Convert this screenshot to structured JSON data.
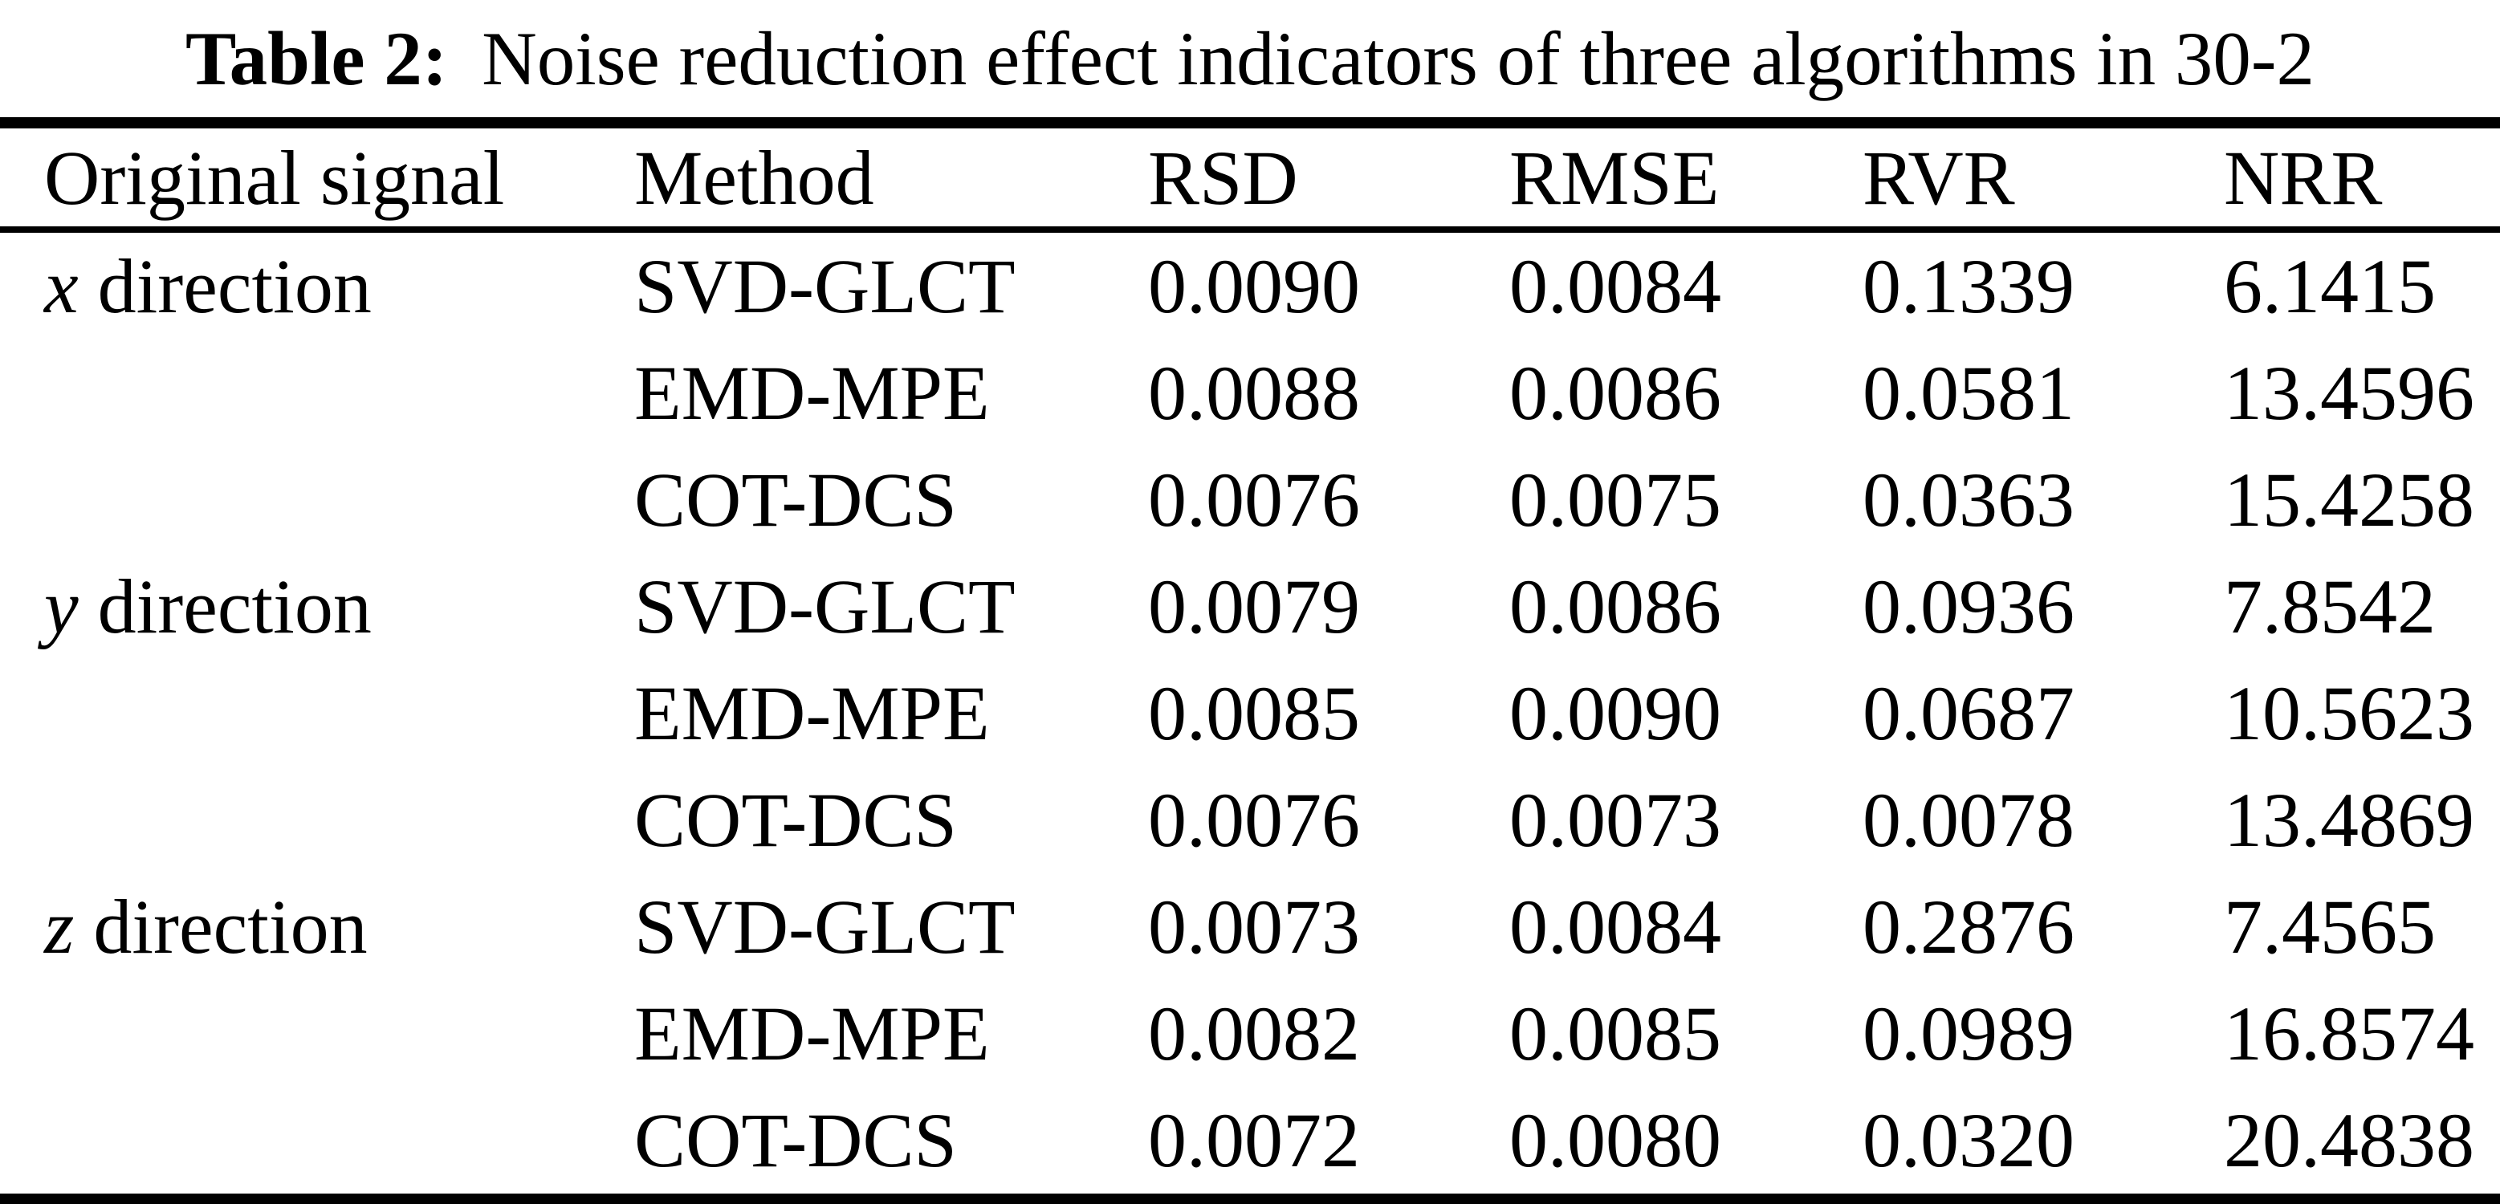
{
  "title": {
    "label": "Table 2:",
    "text": "Noise reduction effect indicators of three algorithms in 30-2"
  },
  "table": {
    "columns": [
      "Original signal",
      "Method",
      "RSD",
      "RMSE",
      "RVR",
      "NRR"
    ],
    "rows": [
      {
        "signal_letter": "x",
        "signal_rest": " direction",
        "method": "SVD-GLCT",
        "rsd": "0.0090",
        "rmse": "0.0084",
        "rvr": "0.1339",
        "nrr": "6.1415"
      },
      {
        "signal_letter": "",
        "signal_rest": "",
        "method": "EMD-MPE",
        "rsd": "0.0088",
        "rmse": "0.0086",
        "rvr": "0.0581",
        "nrr": "13.4596"
      },
      {
        "signal_letter": "",
        "signal_rest": "",
        "method": "COT-DCS",
        "rsd": "0.0076",
        "rmse": "0.0075",
        "rvr": "0.0363",
        "nrr": "15.4258"
      },
      {
        "signal_letter": "y",
        "signal_rest": " direction",
        "method": "SVD-GLCT",
        "rsd": "0.0079",
        "rmse": "0.0086",
        "rvr": "0.0936",
        "nrr": "7.8542"
      },
      {
        "signal_letter": "",
        "signal_rest": "",
        "method": "EMD-MPE",
        "rsd": "0.0085",
        "rmse": "0.0090",
        "rvr": "0.0687",
        "nrr": "10.5623"
      },
      {
        "signal_letter": "",
        "signal_rest": "",
        "method": "COT-DCS",
        "rsd": "0.0076",
        "rmse": "0.0073",
        "rvr": "0.0078",
        "nrr": "13.4869"
      },
      {
        "signal_letter": "z",
        "signal_rest": " direction",
        "method": "SVD-GLCT",
        "rsd": "0.0073",
        "rmse": "0.0084",
        "rvr": "0.2876",
        "nrr": "7.4565"
      },
      {
        "signal_letter": "",
        "signal_rest": "",
        "method": "EMD-MPE",
        "rsd": "0.0082",
        "rmse": "0.0085",
        "rvr": "0.0989",
        "nrr": "16.8574"
      },
      {
        "signal_letter": "",
        "signal_rest": "",
        "method": "COT-DCS",
        "rsd": "0.0072",
        "rmse": "0.0080",
        "rvr": "0.0320",
        "nrr": "20.4838"
      }
    ]
  },
  "chart_data": {
    "type": "table",
    "title": "Table 2: Noise reduction effect indicators of three algorithms in 30-2",
    "columns": [
      "Original signal",
      "Method",
      "RSD",
      "RMSE",
      "RVR",
      "NRR"
    ],
    "rows": [
      [
        "x direction",
        "SVD-GLCT",
        0.009,
        0.0084,
        0.1339,
        6.1415
      ],
      [
        "",
        "EMD-MPE",
        0.0088,
        0.0086,
        0.0581,
        13.4596
      ],
      [
        "",
        "COT-DCS",
        0.0076,
        0.0075,
        0.0363,
        15.4258
      ],
      [
        "y direction",
        "SVD-GLCT",
        0.0079,
        0.0086,
        0.0936,
        7.8542
      ],
      [
        "",
        "EMD-MPE",
        0.0085,
        0.009,
        0.0687,
        10.5623
      ],
      [
        "",
        "COT-DCS",
        0.0076,
        0.0073,
        0.0078,
        13.4869
      ],
      [
        "z direction",
        "SVD-GLCT",
        0.0073,
        0.0084,
        0.2876,
        7.4565
      ],
      [
        "",
        "EMD-MPE",
        0.0082,
        0.0085,
        0.0989,
        16.8574
      ],
      [
        "",
        "COT-DCS",
        0.0072,
        0.008,
        0.032,
        20.4838
      ]
    ]
  },
  "colors": {
    "background": "#ffffff",
    "text": "#000000",
    "rule": "#000000"
  }
}
